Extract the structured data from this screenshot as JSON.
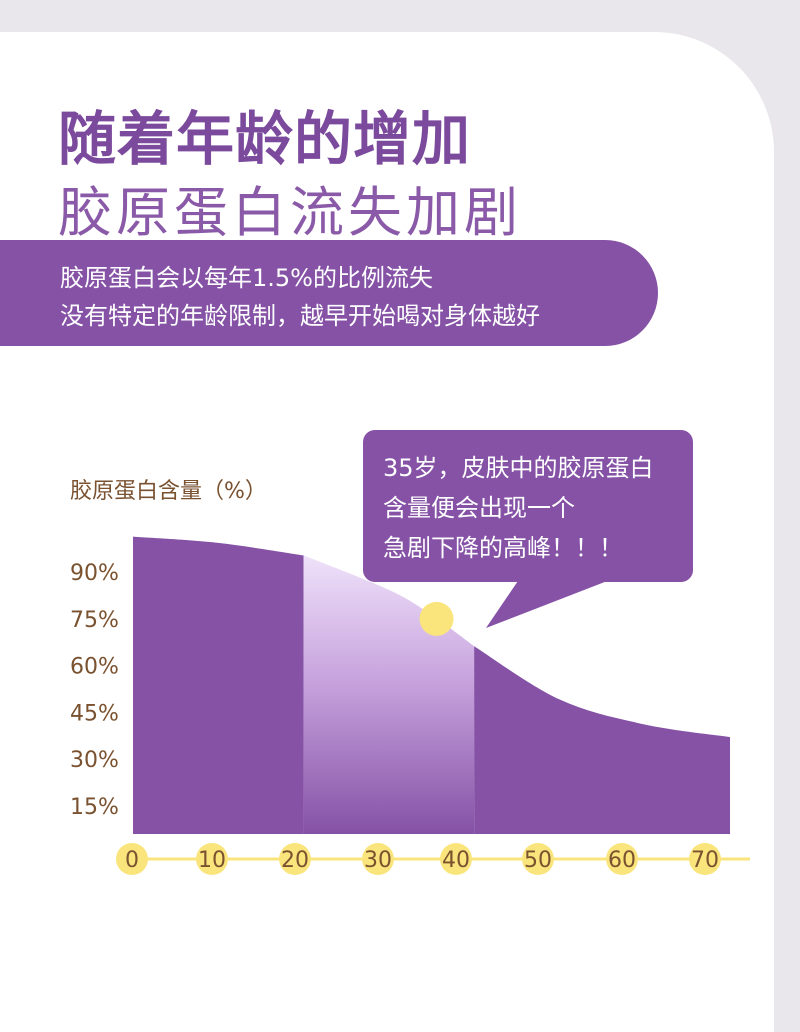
{
  "title": {
    "line1": "随着年龄的增加",
    "line2": "胶原蛋白流失加剧"
  },
  "banner": {
    "line1": "胶原蛋白会以每年1.5%的比例流失",
    "line2": "没有特定的年龄限制，越早开始喝对身体越好"
  },
  "callout": {
    "lines": [
      "35岁，皮肤中的胶原蛋白",
      "含量便会出现一个",
      "急剧下降的高峰！！！"
    ]
  },
  "colors": {
    "purple": "#8552a6",
    "title_purple": "#7b4a9d",
    "axis_text": "#7a5230",
    "marker_yellow": "#fae57c",
    "highlight_top": "#efe1fa"
  },
  "chart_data": {
    "type": "area",
    "title": "",
    "ylabel": "胶原蛋白含量（%）",
    "xlabel": "",
    "x": [
      0,
      10,
      20,
      30,
      35,
      40,
      50,
      60,
      70
    ],
    "y": [
      95,
      93,
      89,
      78,
      70,
      60,
      43,
      35,
      31
    ],
    "xticks": [
      0,
      10,
      20,
      30,
      40,
      50,
      60,
      70
    ],
    "ytick_labels": [
      "90%",
      "75%",
      "60%",
      "45%",
      "30%",
      "15%"
    ],
    "highlight_range": [
      20,
      40
    ],
    "marker": {
      "x": 35,
      "y": 70
    },
    "grid": false,
    "legend": "none"
  }
}
